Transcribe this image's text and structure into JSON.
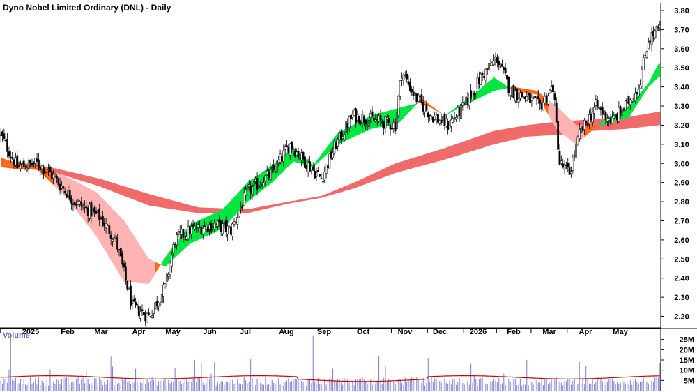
{
  "title": "Dyno Nobel Limited Ordinary (DNL) - Daily",
  "volume_label": "Volume",
  "colors": {
    "up_trend_fast": "#00e640",
    "down_trend_fast": "#ff6a1a",
    "down_trend_fast_light": "#ffb3b3",
    "slow_up": "#3caa6e",
    "slow_down": "#f06a6a",
    "candle": "#000000",
    "volume_bar": "#8a88d6",
    "volume_avg": "#cc0000",
    "grid": "#e0e0e0",
    "axis_text": "#000000",
    "title_text": "#000000",
    "volume_label_text": "#6a6ab8"
  },
  "chart_data": [
    {
      "type": "candlestick",
      "title": "Dyno Nobel Limited Ordinary (DNL) - Daily",
      "x_tick_labels": [
        "2025",
        "Feb",
        "Mar",
        "Apr",
        "May",
        "Jun",
        "Jul",
        "Aug",
        "Sep",
        "Oct",
        "Nov",
        "Dec",
        "2026",
        "Feb",
        "Mar",
        "Apr",
        "May"
      ],
      "y_tick_labels": [
        "2.20",
        "2.30",
        "2.40",
        "2.50",
        "2.60",
        "2.70",
        "2.80",
        "2.90",
        "3.00",
        "3.10",
        "3.20",
        "3.30",
        "3.40",
        "3.50",
        "3.60",
        "3.70",
        "3.80"
      ],
      "ylim": [
        2.14,
        3.84
      ],
      "grid": false,
      "price_series": {
        "name": "",
        "months": [
          "Jan 2025",
          "Feb",
          "Mar",
          "Apr",
          "May",
          "Jun",
          "Jul",
          "Aug",
          "Sep",
          "Oct",
          "Nov",
          "Dec",
          "Jan 2026",
          "Feb",
          "Mar",
          "Apr",
          "May"
        ],
        "close_anchors": [
          [
            0,
            3.15
          ],
          [
            10,
            2.98
          ],
          [
            22,
            3.0
          ],
          [
            30,
            2.95
          ],
          [
            45,
            2.8
          ],
          [
            60,
            2.72
          ],
          [
            70,
            2.6
          ],
          [
            80,
            2.25
          ],
          [
            90,
            2.2
          ],
          [
            100,
            2.35
          ],
          [
            106,
            2.6
          ],
          [
            115,
            2.65
          ],
          [
            130,
            2.68
          ],
          [
            140,
            2.65
          ],
          [
            150,
            2.85
          ],
          [
            165,
            2.95
          ],
          [
            176,
            3.1
          ],
          [
            186,
            3.0
          ],
          [
            195,
            2.92
          ],
          [
            204,
            3.1
          ],
          [
            214,
            3.25
          ],
          [
            230,
            3.22
          ],
          [
            240,
            3.2
          ],
          [
            244,
            3.48
          ],
          [
            252,
            3.35
          ],
          [
            262,
            3.25
          ],
          [
            272,
            3.2
          ],
          [
            282,
            3.3
          ],
          [
            292,
            3.45
          ],
          [
            302,
            3.55
          ],
          [
            310,
            3.38
          ],
          [
            318,
            3.35
          ],
          [
            328,
            3.3
          ],
          [
            336,
            3.4
          ],
          [
            340,
            3.0
          ],
          [
            346,
            2.95
          ],
          [
            352,
            3.15
          ],
          [
            362,
            3.3
          ],
          [
            372,
            3.22
          ],
          [
            380,
            3.3
          ],
          [
            388,
            3.4
          ],
          [
            394,
            3.65
          ],
          [
            400,
            3.7
          ]
        ]
      },
      "gmma_fast_band": {
        "anchors": [
          [
            0,
            3.03,
            2.98
          ],
          [
            10,
            3.0,
            2.97
          ],
          [
            22,
            2.99,
            2.97
          ],
          [
            40,
            2.93,
            2.82
          ],
          [
            58,
            2.85,
            2.62
          ],
          [
            75,
            2.7,
            2.38
          ],
          [
            90,
            2.5,
            2.37
          ],
          [
            100,
            2.46,
            2.51
          ],
          [
            115,
            2.58,
            2.68
          ],
          [
            135,
            2.66,
            2.76
          ],
          [
            150,
            2.8,
            2.9
          ],
          [
            165,
            2.9,
            2.99
          ],
          [
            178,
            3.01,
            3.08
          ],
          [
            190,
            2.98,
            2.99
          ],
          [
            205,
            3.1,
            3.16
          ],
          [
            225,
            3.18,
            3.25
          ],
          [
            242,
            3.21,
            3.29
          ],
          [
            256,
            3.34,
            3.32
          ],
          [
            270,
            3.25,
            3.25
          ],
          [
            286,
            3.32,
            3.35
          ],
          [
            300,
            3.38,
            3.45
          ],
          [
            312,
            3.4,
            3.38
          ],
          [
            326,
            3.38,
            3.36
          ],
          [
            338,
            3.3,
            3.18
          ],
          [
            350,
            3.2,
            3.1
          ],
          [
            366,
            3.2,
            3.22
          ],
          [
            382,
            3.24,
            3.3
          ],
          [
            394,
            3.4,
            3.42
          ],
          [
            400,
            3.45,
            3.52
          ]
        ]
      },
      "gmma_slow_band": {
        "anchors": [
          [
            0,
            3.02,
            2.98
          ],
          [
            30,
            2.98,
            2.96
          ],
          [
            60,
            2.92,
            2.88
          ],
          [
            90,
            2.84,
            2.78
          ],
          [
            120,
            2.77,
            2.74
          ],
          [
            150,
            2.76,
            2.74
          ],
          [
            175,
            2.8,
            2.79
          ],
          [
            195,
            2.83,
            2.82
          ],
          [
            215,
            2.9,
            2.87
          ],
          [
            240,
            3.0,
            2.95
          ],
          [
            270,
            3.08,
            3.02
          ],
          [
            300,
            3.17,
            3.1
          ],
          [
            320,
            3.2,
            3.14
          ],
          [
            340,
            3.22,
            3.15
          ],
          [
            360,
            3.23,
            3.17
          ],
          [
            380,
            3.24,
            3.18
          ],
          [
            400,
            3.27,
            3.2
          ]
        ]
      },
      "volume": {
        "y_tick_labels": [
          "5M",
          "10M",
          "15M",
          "20M",
          "25M"
        ],
        "ylim": [
          0,
          30
        ],
        "typical_millions": 4.5,
        "average_line_millions": 6.5,
        "spikes": [
          [
            6,
            26
          ],
          [
            118,
            15
          ],
          [
            130,
            14
          ],
          [
            190,
            27
          ],
          [
            230,
            17
          ],
          [
            260,
            16
          ],
          [
            320,
            15
          ],
          [
            352,
            14
          ],
          [
            356,
            12
          ]
        ]
      }
    }
  ]
}
